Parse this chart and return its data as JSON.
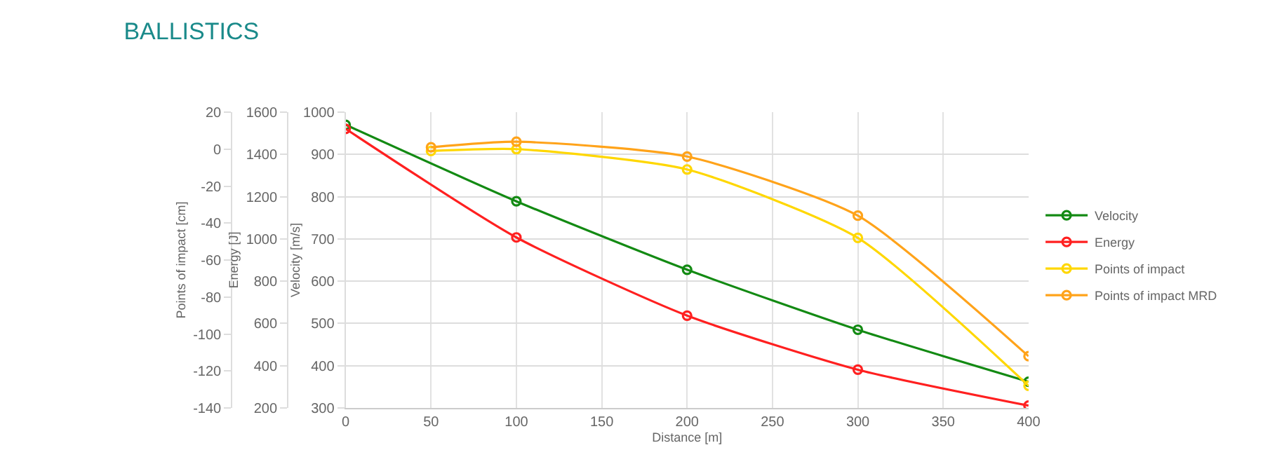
{
  "chart_data": {
    "type": "line",
    "title": "BALLISTICS",
    "xlabel": "Distance [m]",
    "ylabel": "Velocity [m/s]",
    "y2label": "Energy [J]",
    "y3label": "Points of impact [cm]",
    "x": [
      0,
      100,
      200,
      300,
      400
    ],
    "xlim": [
      0,
      400
    ],
    "xticks": [
      0,
      50,
      100,
      150,
      200,
      250,
      300,
      350,
      400
    ],
    "ylim": [
      300,
      1000
    ],
    "yticks": [
      300,
      400,
      500,
      600,
      700,
      800,
      900,
      1000
    ],
    "y2lim": [
      200,
      1600
    ],
    "y2ticks": [
      200,
      400,
      600,
      800,
      1000,
      1200,
      1400,
      1600
    ],
    "y3lim": [
      -140,
      20
    ],
    "y3ticks": [
      -140,
      -120,
      -100,
      -80,
      -60,
      -40,
      -20,
      0,
      20
    ],
    "series": [
      {
        "name": "Velocity",
        "color": "#138a13",
        "values": [
          970,
          789,
          627,
          485,
          362
        ]
      },
      {
        "name": "Energy",
        "color": "#ff2020",
        "axis": "y2",
        "values": [
          1521,
          1007,
          637,
          381,
          211
        ]
      },
      {
        "name": "Points of impact",
        "color": "#ffd700",
        "axis": "y3",
        "x": [
          50,
          100,
          200,
          300,
          400
        ],
        "values": [
          -1,
          0,
          -11,
          -48,
          -128
        ]
      },
      {
        "name": "Points of impact MRD",
        "color": "#ffa31a",
        "axis": "y3",
        "x": [
          50,
          100,
          200,
          300,
          400
        ],
        "values": [
          1,
          4,
          -4,
          -36,
          -112
        ]
      }
    ],
    "marker": "circle",
    "grid": true,
    "legend": "right"
  }
}
